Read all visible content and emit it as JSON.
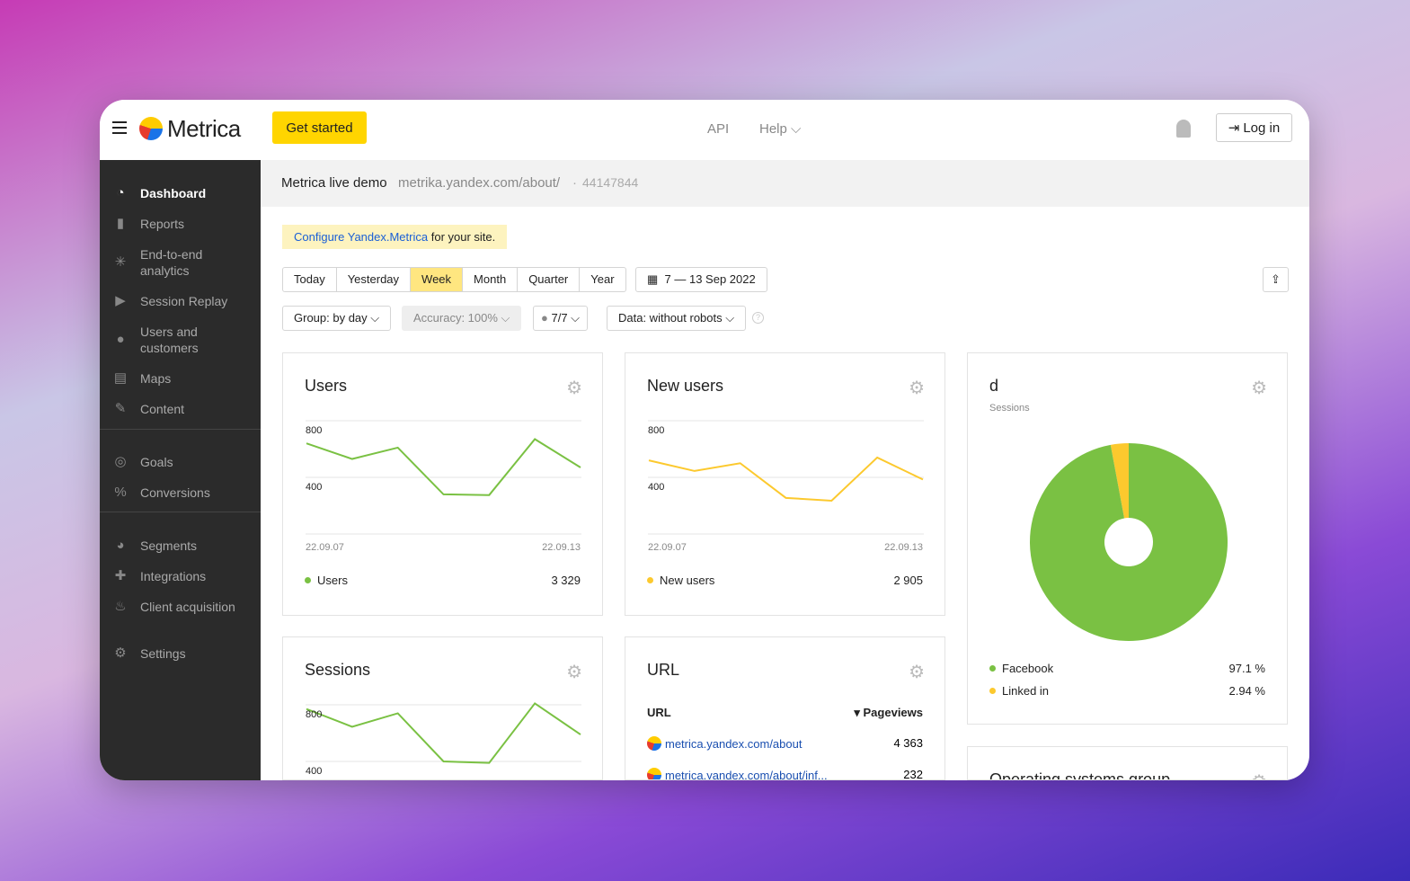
{
  "header": {
    "brand": "Metrica",
    "get_started": "Get started",
    "api": "API",
    "help": "Help",
    "login": "Log in"
  },
  "sidebar": {
    "items": [
      {
        "label": "Dashboard",
        "icon": "gauge-icon"
      },
      {
        "label": "Reports",
        "icon": "bar-chart-icon"
      },
      {
        "label": "End-to-end analytics",
        "icon": "sparkle-icon"
      },
      {
        "label": "Session Replay",
        "icon": "play-icon"
      },
      {
        "label": "Users and customers",
        "icon": "user-icon"
      },
      {
        "label": "Maps",
        "icon": "map-icon"
      },
      {
        "label": "Content",
        "icon": "pen-icon"
      },
      {
        "label": "Goals",
        "icon": "target-icon"
      },
      {
        "label": "Conversions",
        "icon": "percent-icon"
      },
      {
        "label": "Segments",
        "icon": "pie-icon"
      },
      {
        "label": "Integrations",
        "icon": "puzzle-icon"
      },
      {
        "label": "Client acquisition",
        "icon": "fire-icon"
      },
      {
        "label": "Settings",
        "icon": "gear-icon"
      }
    ]
  },
  "counter": {
    "name": "Metrica live demo",
    "site": "metrika.yandex.com/about/",
    "id": "44147844"
  },
  "banner": {
    "link": "Configure Yandex.Metrica",
    "text": " for your site."
  },
  "periods": [
    "Today",
    "Yesterday",
    "Week",
    "Month",
    "Quarter",
    "Year"
  ],
  "active_period": "Week",
  "date_range": "7 — 13 Sep 2022",
  "filters": {
    "group": "Group: by day",
    "accuracy": "Accuracy: 100%",
    "attribution": "7/7",
    "data": "Data: without robots"
  },
  "colors": {
    "green": "#7ac143",
    "yellow": "#fcc92e",
    "accent": "#ffd500"
  },
  "widgets": {
    "users": {
      "title": "Users",
      "y_ticks": [
        "800",
        "400"
      ],
      "x_start": "22.09.07",
      "x_end": "22.09.13",
      "legend": "Users",
      "total": "3 329"
    },
    "new_users": {
      "title": "New users",
      "y_ticks": [
        "800",
        "400"
      ],
      "x_start": "22.09.07",
      "x_end": "22.09.13",
      "legend": "New users",
      "total": "2 905"
    },
    "sessions": {
      "title": "Sessions",
      "y_ticks": [
        "800",
        "400"
      ]
    },
    "pie": {
      "title": "d",
      "subtitle": "Sessions",
      "items": [
        {
          "label": "Facebook",
          "value": "97.1 %"
        },
        {
          "label": "Linked in",
          "value": "2.94 %"
        }
      ]
    },
    "url": {
      "title": "URL",
      "col1": "URL",
      "col2": "▾ Pageviews",
      "rows": [
        {
          "url": "metrica.yandex.com/about",
          "value": "4 363"
        },
        {
          "url": "metrica.yandex.com/about/inf...",
          "value": "232"
        }
      ]
    },
    "os": {
      "title": "Operating systems group"
    }
  },
  "chart_data": [
    {
      "type": "line",
      "title": "Users",
      "ylim": [
        0,
        1200
      ],
      "color": "#7ac143",
      "x": [
        "22.09.07",
        "22.09.08",
        "22.09.09",
        "22.09.10",
        "22.09.11",
        "22.09.12",
        "22.09.13"
      ],
      "values": [
        640,
        530,
        610,
        280,
        275,
        670,
        470
      ]
    },
    {
      "type": "line",
      "title": "New users",
      "ylim": [
        0,
        1200
      ],
      "color": "#fcc92e",
      "x": [
        "22.09.07",
        "22.09.08",
        "22.09.09",
        "22.09.10",
        "22.09.11",
        "22.09.12",
        "22.09.13"
      ],
      "values": [
        520,
        445,
        500,
        255,
        235,
        540,
        385
      ]
    },
    {
      "type": "line",
      "title": "Sessions",
      "ylim": [
        0,
        1200
      ],
      "color": "#7ac143",
      "x": [
        "22.09.07",
        "22.09.08",
        "22.09.09",
        "22.09.10",
        "22.09.11",
        "22.09.12",
        "22.09.13"
      ],
      "values": [
        770,
        645,
        740,
        400,
        390,
        810,
        590
      ]
    },
    {
      "type": "pie",
      "title": "d",
      "labels": [
        "Facebook",
        "Linked in"
      ],
      "values": [
        97.1,
        2.94
      ],
      "colors": [
        "#7ac143",
        "#fcc92e"
      ]
    }
  ]
}
